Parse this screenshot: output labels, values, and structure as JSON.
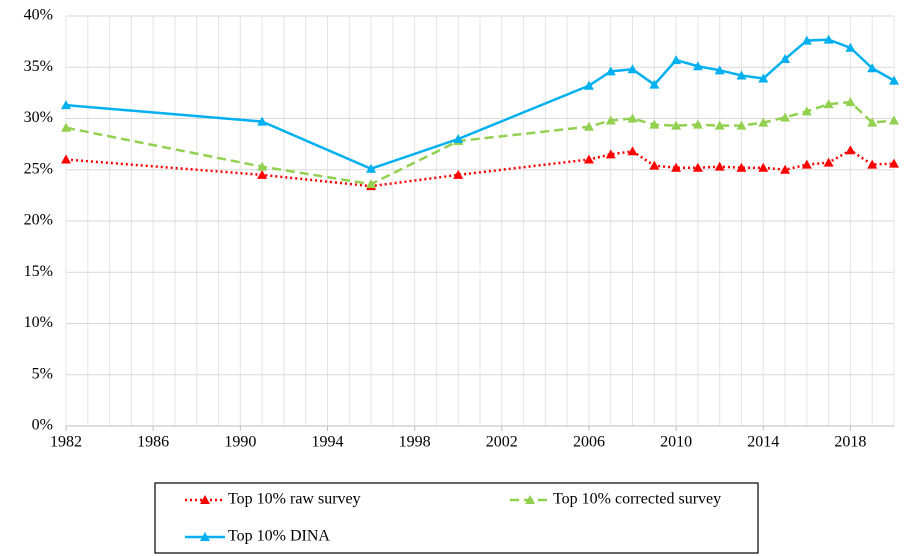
{
  "chart_data": {
    "type": "line",
    "x": [
      1982,
      1991,
      1996,
      2000,
      2006,
      2007,
      2008,
      2009,
      2010,
      2011,
      2012,
      2013,
      2014,
      2015,
      2016,
      2017,
      2018,
      2019,
      2020
    ],
    "series": [
      {
        "name": "Top 10% raw survey",
        "color": "#ff0000",
        "style": "dotted",
        "values": [
          26.0,
          24.5,
          23.4,
          24.5,
          26.0,
          26.5,
          26.8,
          25.4,
          25.2,
          25.2,
          25.3,
          25.2,
          25.2,
          25.0,
          25.5,
          25.7,
          26.9,
          25.5,
          25.6
        ]
      },
      {
        "name": "Top 10% corrected survey",
        "color": "#92d050",
        "style": "dashed",
        "values": [
          29.1,
          25.3,
          23.6,
          27.8,
          29.2,
          29.8,
          30.0,
          29.4,
          29.3,
          29.4,
          29.3,
          29.3,
          29.6,
          30.1,
          30.7,
          31.4,
          31.6,
          29.6,
          29.8
        ]
      },
      {
        "name": "Top 10% DINA",
        "color": "#00b0f0",
        "style": "solid",
        "values": [
          31.3,
          29.7,
          25.1,
          28.0,
          33.2,
          34.6,
          34.8,
          33.3,
          35.7,
          35.1,
          34.7,
          34.2,
          33.9,
          35.8,
          37.6,
          37.7,
          36.9,
          34.9,
          33.7
        ]
      }
    ],
    "xlim": [
      1982,
      2020
    ],
    "xticks": [
      1982,
      1986,
      1990,
      1994,
      1998,
      2002,
      2006,
      2010,
      2014,
      2018
    ],
    "x_minor_ticks": [
      1982,
      1983,
      1984,
      1985,
      1986,
      1987,
      1988,
      1989,
      1990,
      1991,
      1992,
      1993,
      1994,
      1995,
      1996,
      1997,
      1998,
      1999,
      2000,
      2001,
      2002,
      2003,
      2004,
      2005,
      2006,
      2007,
      2008,
      2009,
      2010,
      2011,
      2012,
      2013,
      2014,
      2015,
      2016,
      2017,
      2018,
      2019,
      2020
    ],
    "ylim": [
      0,
      40
    ],
    "yticks": [
      {
        "value": 0,
        "label": "0%"
      },
      {
        "value": 5,
        "label": "5%"
      },
      {
        "value": 10,
        "label": "10%"
      },
      {
        "value": 15,
        "label": "15%"
      },
      {
        "value": 20,
        "label": "20%"
      },
      {
        "value": 25,
        "label": "25%"
      },
      {
        "value": 30,
        "label": "30%"
      },
      {
        "value": 35,
        "label": "35%"
      },
      {
        "value": 40,
        "label": "40%"
      }
    ],
    "grid": true,
    "legend": "bottom"
  }
}
